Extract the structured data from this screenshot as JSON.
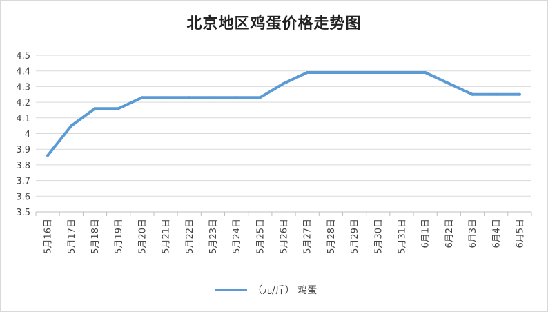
{
  "chart_data": {
    "type": "line",
    "title": "北京地区鸡蛋价格走势图",
    "xlabel": "",
    "ylabel": "",
    "ylim": [
      3.5,
      4.5
    ],
    "yticks": [
      "4.5",
      "4.4",
      "4.3",
      "4.2",
      "4.1",
      "4",
      "3.9",
      "3.8",
      "3.7",
      "3.6",
      "3.5"
    ],
    "grid": true,
    "legend_position": "bottom",
    "categories": [
      "5月16日",
      "5月17日",
      "5月18日",
      "5月19日",
      "5月20日",
      "5月21日",
      "5月22日",
      "5月23日",
      "5月24日",
      "5月25日",
      "5月26日",
      "5月27日",
      "5月28日",
      "5月29日",
      "5月30日",
      "5月31日",
      "6月1日",
      "6月2日",
      "6月3日",
      "6月4日",
      "6月5日"
    ],
    "series": [
      {
        "name": "（元/斤） 鸡蛋",
        "color": "#5b9bd5",
        "values": [
          3.86,
          4.05,
          4.16,
          4.16,
          4.23,
          4.23,
          4.23,
          4.23,
          4.23,
          4.23,
          4.32,
          4.39,
          4.39,
          4.39,
          4.39,
          4.39,
          4.39,
          4.32,
          4.25,
          4.25,
          4.25
        ]
      }
    ]
  }
}
